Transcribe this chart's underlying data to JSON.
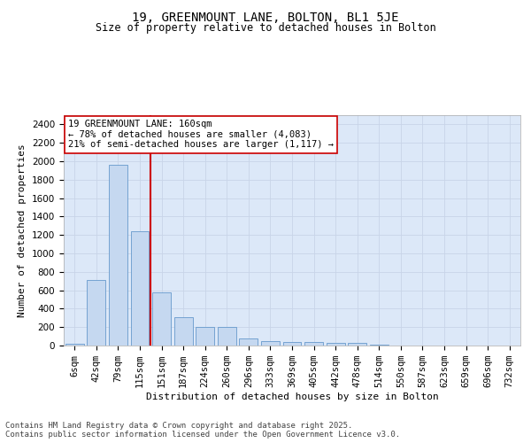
{
  "title_line1": "19, GREENMOUNT LANE, BOLTON, BL1 5JE",
  "title_line2": "Size of property relative to detached houses in Bolton",
  "xlabel": "Distribution of detached houses by size in Bolton",
  "ylabel": "Number of detached properties",
  "categories": [
    "6sqm",
    "42sqm",
    "79sqm",
    "115sqm",
    "151sqm",
    "187sqm",
    "224sqm",
    "260sqm",
    "296sqm",
    "333sqm",
    "369sqm",
    "405sqm",
    "442sqm",
    "478sqm",
    "514sqm",
    "550sqm",
    "587sqm",
    "623sqm",
    "659sqm",
    "696sqm",
    "732sqm"
  ],
  "values": [
    15,
    710,
    1960,
    1240,
    575,
    305,
    200,
    200,
    80,
    45,
    35,
    35,
    30,
    30,
    10,
    0,
    0,
    0,
    0,
    0,
    0
  ],
  "bar_color": "#c5d8f0",
  "bar_edge_color": "#6699cc",
  "vline_color": "#cc0000",
  "annotation_text": "19 GREENMOUNT LANE: 160sqm\n← 78% of detached houses are smaller (4,083)\n21% of semi-detached houses are larger (1,117) →",
  "annotation_box_color": "#ffffff",
  "annotation_box_edge_color": "#cc0000",
  "ylim": [
    0,
    2500
  ],
  "yticks": [
    0,
    200,
    400,
    600,
    800,
    1000,
    1200,
    1400,
    1600,
    1800,
    2000,
    2200,
    2400
  ],
  "grid_color": "#c8d4e8",
  "background_color": "#dce8f8",
  "footer_text": "Contains HM Land Registry data © Crown copyright and database right 2025.\nContains public sector information licensed under the Open Government Licence v3.0.",
  "title_fontsize": 10,
  "subtitle_fontsize": 8.5,
  "axis_label_fontsize": 8,
  "tick_fontsize": 7.5,
  "annotation_fontsize": 7.5,
  "footer_fontsize": 6.5,
  "vline_bar_index": 4
}
